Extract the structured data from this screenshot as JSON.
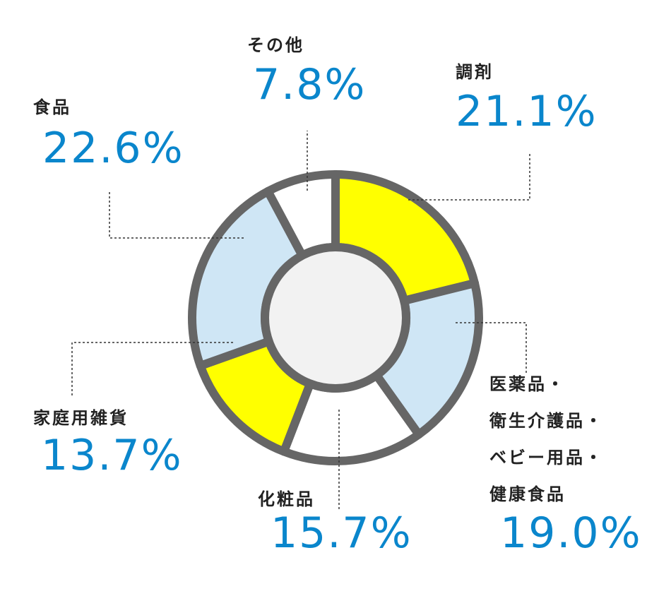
{
  "chart_data": {
    "type": "donut",
    "categories": [
      [
        "調剤"
      ],
      [
        "医薬品・",
        "衛生介護品・",
        "ベビー用品・",
        "健康食品"
      ],
      [
        "化粧品"
      ],
      [
        "家庭用雑貨"
      ],
      [
        "食品"
      ],
      [
        "その他"
      ]
    ],
    "values": [
      21.1,
      19.0,
      15.7,
      13.7,
      22.6,
      7.8
    ],
    "value_labels": [
      "21.1%",
      "19.0%",
      "15.7%",
      "13.7%",
      "22.6%",
      "7.8%"
    ],
    "colors": [
      "#ffff00",
      "#cfe6f5",
      "#ffffff",
      "#ffff00",
      "#cfe6f5",
      "#ffffff"
    ]
  }
}
